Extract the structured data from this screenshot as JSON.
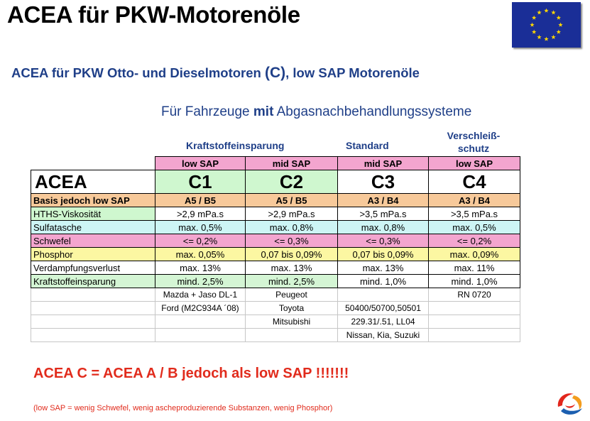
{
  "header": {
    "title": "ACEA für PKW-Motorenöle",
    "subtitle_prefix": "ACEA für PKW Otto- und Dieselmotoren ",
    "subtitle_c": "(C)",
    "subtitle_suffix": ", low SAP Motorenöle",
    "vehicles_prefix": "Für Fahrzeuge ",
    "vehicles_bold": "mit",
    "vehicles_suffix": " Abgasnachbehandlungssysteme"
  },
  "groups": {
    "fuel_saving": "Kraftstoffeinsparung",
    "standard": "Standard",
    "wear_line1": "Verschleiß-",
    "wear_line2": "schutz"
  },
  "table": {
    "sap": [
      "low SAP",
      "mid SAP",
      "mid SAP",
      "low SAP"
    ],
    "class_label": "ACEA",
    "classes": [
      "C1",
      "C2",
      "C3",
      "C4"
    ],
    "basis_label": "Basis jedoch low SAP",
    "basis": [
      "A5 / B5",
      "A5 / B5",
      "A3 / B4",
      "A3 / B4"
    ],
    "rows": [
      {
        "label": "HTHS-Viskosität",
        "values": [
          ">2,9 mPa.s",
          ">2,9 mPa.s",
          ">3,5 mPa.s",
          ">3,5 mPa.s"
        ]
      },
      {
        "label": "Sulfatasche",
        "values": [
          "max. 0,5%",
          "max. 0,8%",
          "max. 0,8%",
          "max. 0,5%"
        ]
      },
      {
        "label": "Schwefel",
        "values": [
          "<= 0,2%",
          "<= 0,3%",
          "<= 0,3%",
          "<= 0,2%"
        ]
      },
      {
        "label": "Phosphor",
        "values": [
          "max. 0,05%",
          "0,07 bis 0,09%",
          "0,07 bis 0,09%",
          "max. 0,09%"
        ]
      },
      {
        "label": "Verdampfungsverlust",
        "values": [
          "max. 13%",
          "max. 13%",
          "max. 13%",
          "max. 11%"
        ]
      },
      {
        "label": "Kraftstoffeinsparung",
        "values": [
          "mind. 2,5%",
          "mind. 2,5%",
          "mind. 1,0%",
          "mind. 1,0%"
        ]
      }
    ],
    "specs": [
      [
        "Mazda + Jaso DL-1",
        "Peugeot",
        "",
        "RN 0720"
      ],
      [
        "Ford (M2C934A ´08)",
        "Toyota",
        "50400/50700,50501",
        ""
      ],
      [
        "",
        "Mitsubishi",
        "229.31/.51, LL04",
        ""
      ],
      [
        "",
        "",
        "Nissan, Kia, Suzuki",
        ""
      ]
    ]
  },
  "conclusion": "ACEA C = ACEA A / B jedoch als low SAP !!!!!!!",
  "footnote": "(low SAP = wenig Schwefel, wenig ascheproduzierende Substanzen, wenig Phosphor)",
  "colors": {
    "title_blue": "#1f3f88",
    "conclusion_red": "#e12b1c",
    "sap_pink": "#f3a5cf",
    "class_green": "#cff7cf",
    "basis_orange": "#f7c99a",
    "cyan": "#cdf5f5",
    "yellow": "#fcf7a2",
    "eu_blue": "#1a2e97",
    "eu_gold": "#ffd700"
  },
  "icons": {
    "flag": "eu-flag-icon",
    "logo": "total-logo-icon"
  }
}
